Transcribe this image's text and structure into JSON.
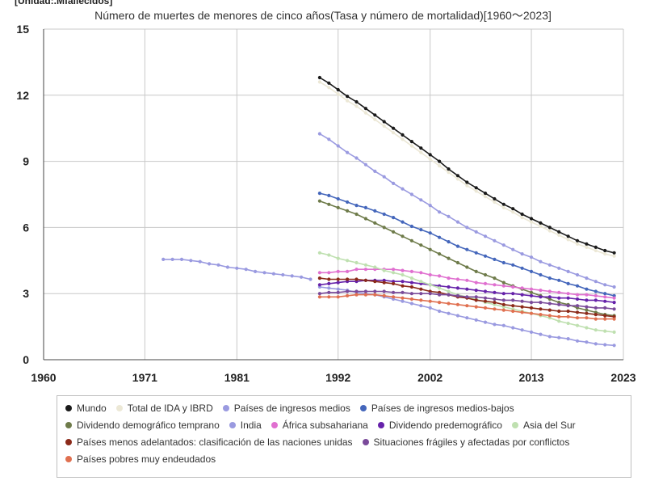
{
  "chart_data": {
    "type": "line",
    "unit_label": "[Unidad:.Mfallecidos]",
    "title": "Número de muertes de menores de cinco años(Tasa y número de mortalidad)[1960～2023]",
    "xlim": [
      1960,
      2023
    ],
    "ylim": [
      0,
      15
    ],
    "x_ticks": [
      "1960",
      "1971",
      "1981",
      "1992",
      "2002",
      "2013",
      "2023"
    ],
    "y_ticks": [
      "0",
      "3",
      "6",
      "9",
      "12",
      "15"
    ],
    "grid": true,
    "legend_position": "bottom",
    "series": [
      {
        "name": "Mundo",
        "color": "#1a1a1a",
        "x_start": 1990,
        "x_end": 2022,
        "values": [
          12.8,
          12.55,
          12.25,
          11.95,
          11.7,
          11.4,
          11.1,
          10.8,
          10.5,
          10.2,
          9.9,
          9.6,
          9.3,
          9.0,
          8.65,
          8.35,
          8.05,
          7.8,
          7.55,
          7.3,
          7.05,
          6.85,
          6.6,
          6.4,
          6.2,
          6.0,
          5.8,
          5.6,
          5.4,
          5.25,
          5.1,
          4.95,
          4.85
        ]
      },
      {
        "name": "Total de IDA y IBRD",
        "color": "#ece8d6",
        "x_start": 1990,
        "x_end": 2022,
        "values": [
          12.6,
          12.35,
          12.05,
          11.75,
          11.5,
          11.2,
          10.9,
          10.6,
          10.3,
          10.0,
          9.7,
          9.4,
          9.1,
          8.8,
          8.5,
          8.2,
          7.9,
          7.65,
          7.4,
          7.15,
          6.9,
          6.7,
          6.45,
          6.25,
          6.05,
          5.85,
          5.65,
          5.45,
          5.25,
          5.1,
          4.95,
          4.8,
          4.7
        ]
      },
      {
        "name": "Países de ingresos medios",
        "color": "#9a9ae0",
        "x_start": 1990,
        "x_end": 2022,
        "values": [
          10.25,
          10.0,
          9.7,
          9.4,
          9.15,
          8.85,
          8.55,
          8.3,
          8.0,
          7.75,
          7.5,
          7.25,
          7.0,
          6.7,
          6.5,
          6.25,
          6.0,
          5.8,
          5.6,
          5.4,
          5.2,
          5.0,
          4.8,
          4.65,
          4.45,
          4.3,
          4.15,
          4.0,
          3.85,
          3.7,
          3.55,
          3.4,
          3.3
        ]
      },
      {
        "name": "Países de ingresos medios-bajos",
        "color": "#4466bb",
        "x_start": 1990,
        "x_end": 2022,
        "values": [
          7.55,
          7.45,
          7.3,
          7.15,
          7.0,
          6.9,
          6.75,
          6.6,
          6.45,
          6.25,
          6.05,
          5.9,
          5.75,
          5.55,
          5.35,
          5.15,
          5.0,
          4.85,
          4.7,
          4.55,
          4.4,
          4.3,
          4.15,
          4.0,
          3.85,
          3.7,
          3.6,
          3.45,
          3.35,
          3.2,
          3.1,
          3.0,
          2.9
        ]
      },
      {
        "name": "Dividendo demográfico temprano",
        "color": "#6e7b4a",
        "x_start": 1990,
        "x_end": 2022,
        "values": [
          7.2,
          7.05,
          6.9,
          6.75,
          6.6,
          6.4,
          6.2,
          6.0,
          5.8,
          5.6,
          5.4,
          5.2,
          5.0,
          4.8,
          4.6,
          4.4,
          4.2,
          4.0,
          3.85,
          3.7,
          3.5,
          3.35,
          3.2,
          3.05,
          2.9,
          2.75,
          2.6,
          2.5,
          2.35,
          2.25,
          2.15,
          2.05,
          2.0
        ]
      },
      {
        "name": "India",
        "color": "#9a9ae0",
        "x_start": 1990,
        "x_end": 2022,
        "values": [
          3.3,
          3.25,
          3.2,
          3.15,
          3.05,
          3.0,
          2.95,
          2.85,
          2.75,
          2.65,
          2.55,
          2.45,
          2.35,
          2.2,
          2.1,
          2.0,
          1.9,
          1.8,
          1.7,
          1.6,
          1.55,
          1.45,
          1.35,
          1.25,
          1.15,
          1.05,
          1.0,
          0.95,
          0.85,
          0.8,
          0.72,
          0.68,
          0.65
        ]
      },
      {
        "name": "India (1973–1989)",
        "color": "#9a9ae0",
        "x_start": 1973,
        "x_end": 1989,
        "values": [
          4.55,
          4.55,
          4.55,
          4.5,
          4.45,
          4.35,
          4.3,
          4.2,
          4.15,
          4.1,
          4.0,
          3.95,
          3.9,
          3.85,
          3.8,
          3.75,
          3.65
        ]
      },
      {
        "name": "África subsahariana",
        "color": "#e070d0",
        "x_start": 1990,
        "x_end": 2022,
        "values": [
          3.95,
          3.95,
          4.0,
          4.0,
          4.1,
          4.1,
          4.1,
          4.1,
          4.1,
          4.05,
          4.0,
          3.95,
          3.85,
          3.8,
          3.7,
          3.65,
          3.6,
          3.5,
          3.45,
          3.4,
          3.35,
          3.3,
          3.25,
          3.2,
          3.15,
          3.1,
          3.05,
          3.0,
          2.95,
          2.95,
          2.9,
          2.85,
          2.8
        ]
      },
      {
        "name": "Dividendo predemográfico",
        "color": "#6622aa",
        "x_start": 1990,
        "x_end": 2022,
        "values": [
          3.4,
          3.45,
          3.5,
          3.55,
          3.55,
          3.6,
          3.6,
          3.6,
          3.55,
          3.55,
          3.5,
          3.45,
          3.4,
          3.35,
          3.3,
          3.25,
          3.2,
          3.15,
          3.1,
          3.05,
          3.0,
          3.0,
          2.95,
          2.9,
          2.85,
          2.85,
          2.8,
          2.8,
          2.75,
          2.7,
          2.7,
          2.65,
          2.6
        ]
      },
      {
        "name": "Asia del Sur",
        "color": "#bfe0b0",
        "x_start": 1990,
        "x_end": 2022,
        "values": [
          4.85,
          4.75,
          4.6,
          4.5,
          4.4,
          4.3,
          4.2,
          4.05,
          3.95,
          3.85,
          3.7,
          3.55,
          3.4,
          3.25,
          3.1,
          2.95,
          2.85,
          2.75,
          2.6,
          2.5,
          2.4,
          2.3,
          2.2,
          2.1,
          2.0,
          1.9,
          1.75,
          1.65,
          1.55,
          1.45,
          1.35,
          1.3,
          1.25
        ]
      },
      {
        "name": "Países menos adelantados: clasificación de las naciones unidas",
        "color": "#8b2a1a",
        "x_start": 1990,
        "x_end": 2022,
        "values": [
          3.7,
          3.65,
          3.65,
          3.65,
          3.65,
          3.6,
          3.55,
          3.5,
          3.45,
          3.35,
          3.3,
          3.2,
          3.1,
          3.05,
          2.95,
          2.85,
          2.8,
          2.7,
          2.65,
          2.6,
          2.5,
          2.45,
          2.4,
          2.35,
          2.3,
          2.25,
          2.2,
          2.2,
          2.15,
          2.1,
          2.05,
          2.0,
          1.95
        ]
      },
      {
        "name": "Situaciones frágiles y afectadas por conflictos",
        "color": "#7a4a9a",
        "x_start": 1990,
        "x_end": 2022,
        "values": [
          3.0,
          3.05,
          3.05,
          3.1,
          3.1,
          3.1,
          3.1,
          3.1,
          3.05,
          3.05,
          3.0,
          3.0,
          3.0,
          2.95,
          2.95,
          2.9,
          2.85,
          2.85,
          2.8,
          2.75,
          2.7,
          2.7,
          2.65,
          2.6,
          2.6,
          2.55,
          2.5,
          2.45,
          2.45,
          2.4,
          2.35,
          2.35,
          2.3
        ]
      },
      {
        "name": "Países pobres muy endeudados",
        "color": "#e07050",
        "x_start": 1990,
        "x_end": 2022,
        "values": [
          2.85,
          2.85,
          2.85,
          2.9,
          2.95,
          2.95,
          2.95,
          2.9,
          2.85,
          2.8,
          2.75,
          2.7,
          2.65,
          2.6,
          2.55,
          2.5,
          2.45,
          2.4,
          2.35,
          2.3,
          2.25,
          2.2,
          2.15,
          2.1,
          2.05,
          2.0,
          1.95,
          1.95,
          1.9,
          1.9,
          1.85,
          1.85,
          1.85
        ]
      }
    ],
    "legend": [
      {
        "label": "Mundo",
        "color": "#1a1a1a"
      },
      {
        "label": "Total de IDA y IBRD",
        "color": "#ece8d6"
      },
      {
        "label": "Países de ingresos medios",
        "color": "#9a9ae0"
      },
      {
        "label": "Países de ingresos medios-bajos",
        "color": "#4466bb"
      },
      {
        "label": "Dividendo demográfico temprano",
        "color": "#6e7b4a"
      },
      {
        "label": "India",
        "color": "#9a9ae0"
      },
      {
        "label": "África subsahariana",
        "color": "#e070d0"
      },
      {
        "label": "Dividendo predemográfico",
        "color": "#6622aa"
      },
      {
        "label": "Asia del Sur",
        "color": "#bfe0b0"
      },
      {
        "label": "Países menos adelantados: clasificación de las naciones unidas",
        "color": "#8b2a1a"
      },
      {
        "label": "Situaciones frágiles y afectadas por conflictos",
        "color": "#7a4a9a"
      },
      {
        "label": "Países pobres muy endeudados",
        "color": "#e07050"
      }
    ]
  }
}
